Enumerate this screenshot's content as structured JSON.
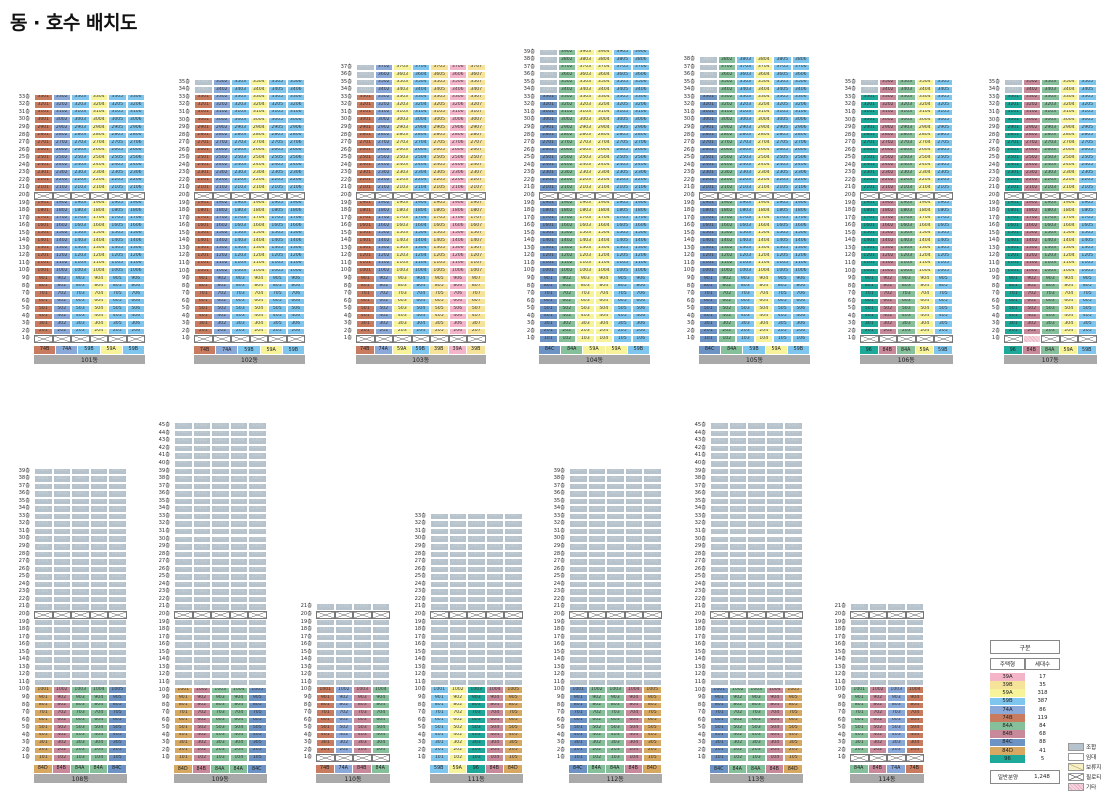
{
  "page_title": "동 · 호수 배치도",
  "colors": {
    "39A": "#f5b5c8",
    "39B": "#f5e39a",
    "59A": "#f7f39a",
    "59B": "#7fc6ee",
    "74A": "#8aa8d8",
    "74B": "#c97b5f",
    "84A": "#86c09a",
    "84B": "#c88a9b",
    "84C": "#6d93c4",
    "84D": "#d7a862",
    "96": "#1ea89a",
    "lease": "#b7c3cc"
  },
  "buildings": [
    {
      "name": "101동",
      "floors": 33,
      "types": [
        "74B",
        "74A",
        "59B",
        "59A",
        "59B"
      ],
      "lines": [
        "74B",
        "74A",
        "59B",
        "59A",
        "59B",
        "59B"
      ],
      "pilotis_floors": [
        20,
        1
      ],
      "lease_floors": [],
      "etc": []
    },
    {
      "name": "102동",
      "floors": 35,
      "types": [
        "74B",
        "74A",
        "59B",
        "59A",
        "59B"
      ],
      "lines": [
        "74B",
        "74A",
        "59B",
        "59A",
        "59B",
        "59B"
      ],
      "pilotis_floors": [
        20,
        1
      ],
      "lease_floors": [],
      "etc": []
    },
    {
      "name": "103동",
      "floors": 37,
      "types": [
        "74B",
        "74A",
        "59A",
        "59B",
        "39B",
        "39A",
        "39B"
      ],
      "lines": [
        "74B",
        "74A",
        "59A",
        "59B",
        "39B",
        "39A",
        "39B"
      ],
      "pilotis_floors": [
        20,
        1
      ],
      "lease_floors": [],
      "etc": []
    },
    {
      "name": "104동",
      "floors": 39,
      "types": [
        "84C",
        "84A",
        "59A",
        "59A",
        "59B"
      ],
      "lines": [
        "84C",
        "84A",
        "59A",
        "59A",
        "59B",
        "59B"
      ],
      "pilotis_floors": [
        20
      ],
      "lease_floors": [],
      "etc": []
    },
    {
      "name": "105동",
      "floors": 38,
      "types": [
        "84C",
        "84A",
        "59B",
        "59A",
        "59B"
      ],
      "lines": [
        "84C",
        "84A",
        "59B",
        "59A",
        "59B",
        "59B"
      ],
      "pilotis_floors": [
        20
      ],
      "lease_floors": [],
      "etc": []
    },
    {
      "name": "106동",
      "floors": 35,
      "types": [
        "96",
        "84B",
        "84A",
        "59A",
        "59B"
      ],
      "lines": [
        "96",
        "84B",
        "84A",
        "59A",
        "59B"
      ],
      "pilotis_floors": [
        20,
        1
      ],
      "lease_floors": [],
      "etc": []
    },
    {
      "name": "107동",
      "floors": 35,
      "types": [
        "96",
        "84B",
        "84A",
        "59A",
        "59B"
      ],
      "lines": [
        "96",
        "84B",
        "84A",
        "59A",
        "59B"
      ],
      "pilotis_floors": [
        20,
        1
      ],
      "lease_floors": [],
      "etc": [
        "1-2"
      ]
    },
    {
      "name": "108동",
      "floors": 39,
      "types": [
        "84D",
        "84B",
        "84A",
        "84A",
        "84C"
      ],
      "lines": [
        "84D",
        "84B",
        "84A",
        "84A",
        "84C"
      ],
      "pilotis_floors": [
        20
      ],
      "lease_floors": [],
      "etc": []
    },
    {
      "name": "109동",
      "floors": 45,
      "types": [
        "84D",
        "84B",
        "84A",
        "84A",
        "84C"
      ],
      "lines": [
        "84D",
        "84B",
        "84A",
        "84A",
        "84C"
      ],
      "pilotis_floors": [
        20
      ],
      "lease_floors": [],
      "etc": []
    },
    {
      "name": "110동",
      "floors": 21,
      "types": [
        "74B",
        "74A",
        "84B",
        "84A"
      ],
      "lines": [
        "74B",
        "74A",
        "84B",
        "84A"
      ],
      "pilotis_floors": [
        20,
        1
      ],
      "lease_floors": [],
      "etc": []
    },
    {
      "name": "111동",
      "floors": 33,
      "types": [
        "59B",
        "59A",
        "96",
        "84B",
        "84D"
      ],
      "lines": [
        "59B",
        "59A",
        "96",
        "84B",
        "84D"
      ],
      "pilotis_floors": [
        20
      ],
      "lease_floors": [],
      "etc": []
    },
    {
      "name": "112동",
      "floors": 39,
      "types": [
        "84C",
        "84A",
        "84A",
        "84B",
        "84D"
      ],
      "lines": [
        "84C",
        "84A",
        "84A",
        "84B",
        "84D"
      ],
      "pilotis_floors": [
        20
      ],
      "lease_floors": [],
      "etc": []
    },
    {
      "name": "113동",
      "floors": 45,
      "types": [
        "84C",
        "84A",
        "84A",
        "84B",
        "84D"
      ],
      "lines": [
        "84C",
        "84A",
        "84A",
        "84B",
        "84D"
      ],
      "pilotis_floors": [
        20
      ],
      "lease_floors": [],
      "etc": []
    },
    {
      "name": "114동",
      "floors": 21,
      "types": [
        "84A",
        "84B",
        "74A",
        "74B"
      ],
      "lines": [
        "84A",
        "84B",
        "74A",
        "74B"
      ],
      "pilotis_floors": [
        20,
        1
      ],
      "lease_floors": [],
      "etc": []
    }
  ],
  "legend": {
    "header": "구분",
    "col_type": "주택형",
    "col_count": "세대수",
    "rows": [
      {
        "type": "39A",
        "count": "17"
      },
      {
        "type": "39B",
        "count": "35"
      },
      {
        "type": "59A",
        "count": "318"
      },
      {
        "type": "59B",
        "count": "387"
      },
      {
        "type": "74A",
        "count": "86"
      },
      {
        "type": "74B",
        "count": "119"
      },
      {
        "type": "84A",
        "count": "84"
      },
      {
        "type": "84B",
        "count": "68"
      },
      {
        "type": "84C",
        "count": "88"
      },
      {
        "type": "84D",
        "count": "41"
      },
      {
        "type": "96",
        "count": "5"
      }
    ],
    "total_label": "일반분양",
    "total_count": "1,248"
  },
  "status_legend": [
    {
      "key": "lease",
      "label": "조합"
    },
    {
      "key": "sale",
      "label": "임대"
    },
    {
      "key": "reserve",
      "label": "보류지"
    },
    {
      "key": "pilotis",
      "label": "필로티"
    },
    {
      "key": "etc",
      "label": "기타"
    }
  ]
}
